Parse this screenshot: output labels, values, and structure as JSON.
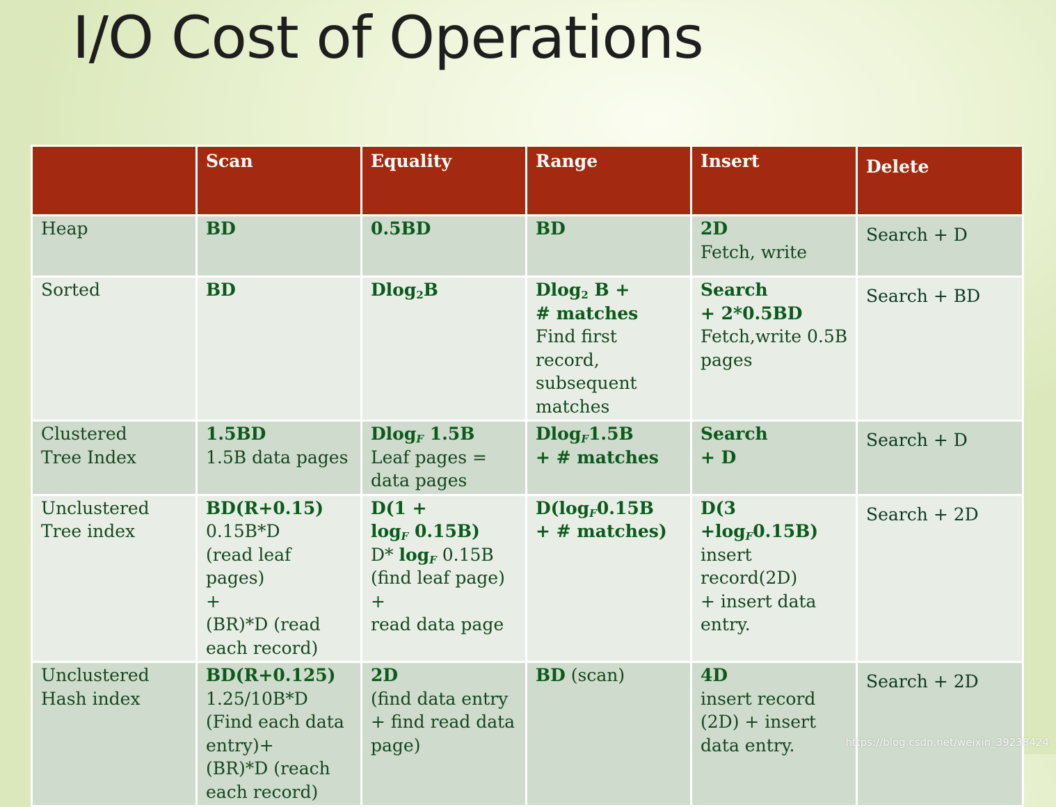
{
  "title": "I/O Cost of Operations",
  "watermark": "https://blog.csdn.net/weixin_39238424",
  "table": {
    "columns": [
      "",
      "Scan",
      "Equality",
      "Range",
      "Insert",
      "Delete"
    ],
    "rows": [
      {
        "label": [
          "Heap"
        ],
        "scan": [
          {
            "t": "BD",
            "b": true
          }
        ],
        "equality": [
          {
            "t": "0.5BD",
            "b": true
          }
        ],
        "range": [
          {
            "t": "BD",
            "b": true
          }
        ],
        "insert": [
          {
            "t": "2D",
            "b": true
          },
          {
            "t": "Fetch, write",
            "b": false
          }
        ],
        "delete": "Search + D"
      },
      {
        "label": [
          "Sorted"
        ],
        "scan": [
          {
            "t": "BD",
            "b": true
          }
        ],
        "equality": [
          {
            "t": "Dlog",
            "sub": "2",
            "after": "B",
            "b": true
          }
        ],
        "range": [
          {
            "t": "Dlog",
            "sub": "2",
            "after": " B +",
            "b": true
          },
          {
            "t": "# matches",
            "b": true
          },
          {
            "t": "Find first record,",
            "b": false
          },
          {
            "t": "subsequent",
            "b": false
          },
          {
            "t": "matches",
            "b": false
          }
        ],
        "insert": [
          {
            "t": "Search",
            "b": true
          },
          {
            "t": "+ 2*0.5BD",
            "b": true
          },
          {
            "t": "Fetch,write 0.5B",
            "b": false
          },
          {
            "t": "pages",
            "b": false
          }
        ],
        "delete": "Search + BD"
      },
      {
        "label": [
          "Clustered",
          "Tree Index"
        ],
        "scan": [
          {
            "t": "1.5BD",
            "b": true
          },
          {
            "t": "1.5B data pages",
            "b": false
          }
        ],
        "equality": [
          {
            "t": "Dlog",
            "sub": "F",
            "after": " 1.5B",
            "b": true
          },
          {
            "t": "Leaf pages =",
            "b": false
          },
          {
            "t": "data pages",
            "b": false
          }
        ],
        "range": [
          {
            "t": "Dlog",
            "sub": "F",
            "after": "1.5B",
            "b": true
          },
          {
            "t": "+ # matches",
            "b": true
          }
        ],
        "insert": [
          {
            "t": "Search",
            "b": true
          },
          {
            "t": "+ D",
            "b": true
          }
        ],
        "delete": "Search + D"
      },
      {
        "label": [
          "Unclustered",
          "Tree index"
        ],
        "scan": [
          {
            "t": "BD(R+0.15)",
            "b": true
          },
          {
            "t": "0.15B*D",
            "b": false
          },
          {
            "t": "(read leaf pages)",
            "b": false
          },
          {
            "t": "+",
            "b": false
          },
          {
            "t": "(BR)*D (read",
            "b": false
          },
          {
            "t": "each record)",
            "b": false
          }
        ],
        "equality": [
          {
            "t": "D(1 +",
            "b": true
          },
          {
            "t": "log",
            "sub": "F",
            "after": " 0.15B)",
            "b": true
          },
          {
            "t": "D* ",
            "b": false,
            "mixed": {
              "t": "log",
              "sub": "F",
              "after": " 0.15B"
            }
          },
          {
            "t": "(find leaf page) +",
            "b": false
          },
          {
            "t": "read data page",
            "b": false
          }
        ],
        "range": [
          {
            "t": "D(log",
            "sub": "F",
            "after": "0.15B",
            "b": true
          },
          {
            "t": "+ # matches)",
            "b": true
          }
        ],
        "insert": [
          {
            "t": "D(3 +log",
            "sub": "F",
            "after": "0.15B)",
            "b": true
          },
          {
            "t": "insert record(2D)",
            "b": false
          },
          {
            "t": "+ insert data",
            "b": false
          },
          {
            "t": "entry.",
            "b": false
          }
        ],
        "delete": "Search + 2D"
      },
      {
        "label": [
          "Unclustered",
          "Hash index"
        ],
        "scan": [
          {
            "t": "BD(R+0.125)",
            "b": true
          },
          {
            "t": "1.25/10B*D",
            "b": false
          },
          {
            "t": "(Find each data",
            "b": false
          },
          {
            "t": "entry)+",
            "b": false
          },
          {
            "t": "(BR)*D (reach",
            "b": false
          },
          {
            "t": "each record)",
            "b": false
          }
        ],
        "equality": [
          {
            "t": "2D",
            "b": true
          },
          {
            "t": "(find data entry",
            "b": false
          },
          {
            "t": "+ find read data",
            "b": false
          },
          {
            "t": "page)",
            "b": false
          }
        ],
        "range": [
          {
            "t": "BD",
            "b": true,
            "suffix": " (scan)"
          }
        ],
        "insert": [
          {
            "t": "4D",
            "b": true
          },
          {
            "t": "insert record",
            "b": false
          },
          {
            "t": "(2D) + insert",
            "b": false
          },
          {
            "t": "data entry.",
            "b": false
          }
        ],
        "delete": "Search + 2D"
      }
    ]
  }
}
